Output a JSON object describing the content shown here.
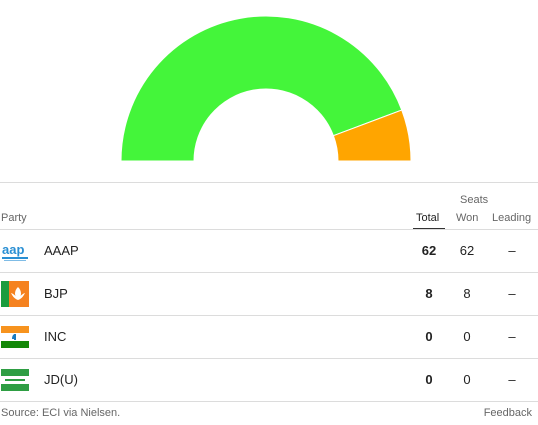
{
  "chart_data": {
    "type": "pie",
    "categories": [
      "AAAP",
      "BJP",
      "INC",
      "JD(U)"
    ],
    "values": [
      62,
      8,
      0,
      0
    ],
    "colors": [
      "#44f53a",
      "#ffa500",
      "#1a7cc1",
      "#2e9e43"
    ]
  },
  "table": {
    "header_group": "Seats",
    "col_party": "Party",
    "col_total": "Total",
    "col_won": "Won",
    "col_leading": "Leading",
    "rows": [
      {
        "party": "AAAP",
        "logo": "aap-logo-icon",
        "total": "62",
        "won": "62",
        "leading": "–"
      },
      {
        "party": "BJP",
        "logo": "bjp-lotus-flag-icon",
        "total": "8",
        "won": "8",
        "leading": "–"
      },
      {
        "party": "INC",
        "logo": "inc-tricolor-flag-icon",
        "total": "0",
        "won": "0",
        "leading": "–"
      },
      {
        "party": "JD(U)",
        "logo": "jdu-flag-icon",
        "total": "0",
        "won": "0",
        "leading": "–"
      }
    ]
  },
  "footer": {
    "source": "Source: ECI via Nielsen.",
    "feedback": "Feedback"
  }
}
